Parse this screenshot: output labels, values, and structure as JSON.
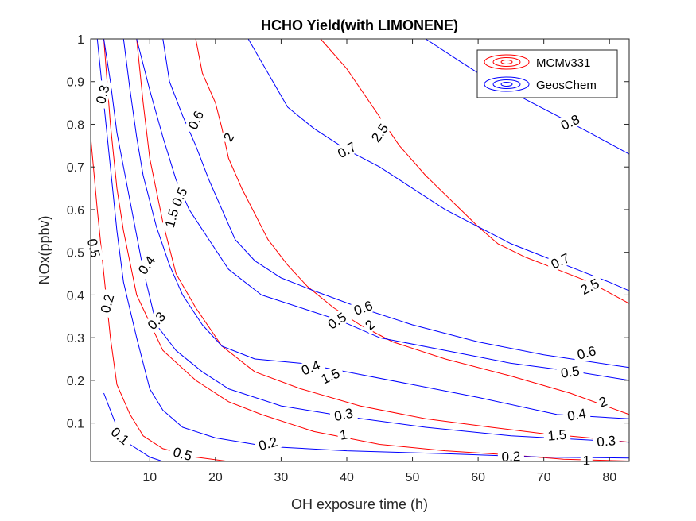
{
  "chart_data": {
    "type": "contour",
    "title": "HCHO Yield(with LIMONENE)",
    "xlabel": "OH exposure time (h)",
    "ylabel": "NOx(ppbv)",
    "xlim": [
      1,
      83
    ],
    "ylim": [
      0.01,
      1
    ],
    "xticks": [
      10,
      20,
      30,
      40,
      50,
      60,
      70,
      80
    ],
    "yticks": [
      0.1,
      0.2,
      0.3,
      0.4,
      0.5,
      0.6,
      0.7,
      0.8,
      0.9,
      1
    ],
    "ytick_labels": [
      "0.1",
      "0.2",
      "0.3",
      "0.4",
      "0.5",
      "0.6",
      "0.7",
      "0.8",
      "0.9",
      "1"
    ],
    "grid": false,
    "legend_position": "top-right",
    "colors": {
      "MCMv331": "#ff0000",
      "GeosChem": "#0000ff",
      "axes": "#262626"
    },
    "series": [
      {
        "name": "MCMv331",
        "contours": [
          {
            "level": "0.5",
            "points": [
              [
                1,
                0.77
              ],
              [
                2,
                0.6
              ],
              [
                3,
                0.45
              ],
              [
                4,
                0.3
              ],
              [
                5,
                0.19
              ],
              [
                7,
                0.12
              ],
              [
                9,
                0.07
              ],
              [
                12,
                0.04
              ],
              [
                17,
                0.02
              ],
              [
                22,
                0.01
              ]
            ],
            "labels": [
              {
                "x": 1.5,
                "y": 0.51,
                "angle": 78
              },
              {
                "x": 15,
                "y": 0.028,
                "angle": 15
              }
            ]
          },
          {
            "level": "1",
            "points": [
              [
                3,
                1
              ],
              [
                4,
                0.8
              ],
              [
                5,
                0.65
              ],
              [
                6,
                0.55
              ],
              [
                8,
                0.4
              ],
              [
                12,
                0.27
              ],
              [
                17,
                0.2
              ],
              [
                22,
                0.15
              ],
              [
                27,
                0.12
              ],
              [
                35,
                0.08
              ],
              [
                45,
                0.05
              ],
              [
                55,
                0.035
              ],
              [
                65,
                0.025
              ],
              [
                73,
                0.015
              ],
              [
                83,
                0.011
              ]
            ],
            "labels": [
              {
                "x": 39.5,
                "y": 0.073,
                "angle": -10
              },
              {
                "x": 76.5,
                "y": 0.013,
                "angle": 0
              }
            ]
          },
          {
            "level": "1.5",
            "points": [
              [
                8,
                1
              ],
              [
                9,
                0.85
              ],
              [
                10,
                0.72
              ],
              [
                12,
                0.57
              ],
              [
                14,
                0.45
              ],
              [
                17,
                0.37
              ],
              [
                21,
                0.28
              ],
              [
                26,
                0.22
              ],
              [
                33,
                0.18
              ],
              [
                42,
                0.14
              ],
              [
                52,
                0.11
              ],
              [
                62,
                0.09
              ],
              [
                70,
                0.075
              ],
              [
                77,
                0.065
              ],
              [
                83,
                0.055
              ]
            ],
            "labels": [
              {
                "x": 13.3,
                "y": 0.58,
                "angle": -75
              },
              {
                "x": 37.5,
                "y": 0.21,
                "angle": -25
              },
              {
                "x": 72,
                "y": 0.072,
                "angle": -5
              }
            ]
          },
          {
            "level": "2",
            "points": [
              [
                17,
                1
              ],
              [
                18,
                0.92
              ],
              [
                20,
                0.85
              ],
              [
                21,
                0.79
              ],
              [
                22,
                0.72
              ],
              [
                24,
                0.65
              ],
              [
                26,
                0.59
              ],
              [
                28,
                0.53
              ],
              [
                31,
                0.47
              ],
              [
                34,
                0.42
              ],
              [
                38,
                0.37
              ],
              [
                42,
                0.33
              ],
              [
                47,
                0.29
              ],
              [
                55,
                0.25
              ],
              [
                65,
                0.21
              ],
              [
                74,
                0.17
              ],
              [
                83,
                0.12
              ]
            ],
            "labels": [
              {
                "x": 22,
                "y": 0.77,
                "angle": -60
              },
              {
                "x": 43.5,
                "y": 0.33,
                "angle": -40
              },
              {
                "x": 79,
                "y": 0.15,
                "angle": -20
              }
            ]
          },
          {
            "level": "2.5",
            "points": [
              [
                36,
                1
              ],
              [
                40,
                0.93
              ],
              [
                44,
                0.84
              ],
              [
                48,
                0.75
              ],
              [
                52,
                0.68
              ],
              [
                56,
                0.62
              ],
              [
                60,
                0.56
              ],
              [
                63,
                0.52
              ],
              [
                67,
                0.49
              ],
              [
                72,
                0.46
              ],
              [
                77,
                0.43
              ],
              [
                83,
                0.38
              ]
            ],
            "labels": [
              {
                "x": 45,
                "y": 0.78,
                "angle": -55
              },
              {
                "x": 77,
                "y": 0.42,
                "angle": -28
              }
            ]
          }
        ]
      },
      {
        "name": "GeosChem",
        "contours": [
          {
            "level": "0.1",
            "points": [
              [
                3,
                0.17
              ],
              [
                5,
                0.09
              ],
              [
                7,
                0.05
              ],
              [
                10,
                0.02
              ],
              [
                12,
                0.01
              ]
            ],
            "labels": [
              {
                "x": 5.5,
                "y": 0.07,
                "angle": 40
              }
            ]
          },
          {
            "level": "0.2",
            "points": [
              [
                2,
                1
              ],
              [
                3,
                0.85
              ],
              [
                4,
                0.7
              ],
              [
                5,
                0.55
              ],
              [
                6,
                0.43
              ],
              [
                8,
                0.3
              ],
              [
                10,
                0.18
              ],
              [
                12,
                0.13
              ],
              [
                15,
                0.09
              ],
              [
                20,
                0.065
              ],
              [
                28,
                0.045
              ],
              [
                40,
                0.035
              ],
              [
                55,
                0.028
              ],
              [
                70,
                0.02
              ],
              [
                83,
                0.018
              ]
            ],
            "labels": [
              {
                "x": 3.5,
                "y": 0.38,
                "angle": -75
              },
              {
                "x": 28,
                "y": 0.052,
                "angle": -15
              },
              {
                "x": 65,
                "y": 0.022,
                "angle": -2
              }
            ]
          },
          {
            "level": "0.3",
            "points": [
              [
                3,
                1
              ],
              [
                4,
                0.9
              ],
              [
                5,
                0.78
              ],
              [
                7,
                0.62
              ],
              [
                9,
                0.46
              ],
              [
                11,
                0.33
              ],
              [
                14,
                0.27
              ],
              [
                18,
                0.22
              ],
              [
                22,
                0.18
              ],
              [
                30,
                0.14
              ],
              [
                40,
                0.115
              ],
              [
                52,
                0.09
              ],
              [
                65,
                0.07
              ],
              [
                83,
                0.055
              ]
            ],
            "labels": [
              {
                "x": 2.8,
                "y": 0.87,
                "angle": -75
              },
              {
                "x": 11,
                "y": 0.34,
                "angle": -45
              },
              {
                "x": 39.5,
                "y": 0.12,
                "angle": -12
              },
              {
                "x": 79.5,
                "y": 0.058,
                "angle": -5
              }
            ]
          },
          {
            "level": "0.4",
            "points": [
              [
                6,
                1
              ],
              [
                7,
                0.88
              ],
              [
                8,
                0.77
              ],
              [
                9,
                0.68
              ],
              [
                11,
                0.56
              ],
              [
                13,
                0.47
              ],
              [
                15,
                0.4
              ],
              [
                18,
                0.33
              ],
              [
                21,
                0.28
              ],
              [
                26,
                0.25
              ],
              [
                33,
                0.24
              ],
              [
                40,
                0.22
              ],
              [
                50,
                0.19
              ],
              [
                60,
                0.16
              ],
              [
                72,
                0.12
              ],
              [
                83,
                0.11
              ]
            ],
            "labels": [
              {
                "x": 9.5,
                "y": 0.47,
                "angle": -55
              },
              {
                "x": 34.5,
                "y": 0.23,
                "angle": -22
              },
              {
                "x": 75,
                "y": 0.12,
                "angle": -10
              }
            ]
          },
          {
            "level": "0.5",
            "points": [
              [
                8,
                1
              ],
              [
                10,
                0.88
              ],
              [
                12,
                0.77
              ],
              [
                14,
                0.67
              ],
              [
                16,
                0.6
              ],
              [
                19,
                0.53
              ],
              [
                22,
                0.46
              ],
              [
                27,
                0.4
              ],
              [
                33,
                0.37
              ],
              [
                39,
                0.34
              ],
              [
                45,
                0.3
              ],
              [
                55,
                0.27
              ],
              [
                65,
                0.24
              ],
              [
                75,
                0.22
              ],
              [
                83,
                0.2
              ]
            ],
            "labels": [
              {
                "x": 14.5,
                "y": 0.63,
                "angle": -65
              },
              {
                "x": 38.5,
                "y": 0.34,
                "angle": -33
              },
              {
                "x": 74,
                "y": 0.22,
                "angle": -8
              }
            ]
          },
          {
            "level": "0.6",
            "points": [
              [
                12,
                1
              ],
              [
                13,
                0.9
              ],
              [
                15,
                0.82
              ],
              [
                17,
                0.75
              ],
              [
                19,
                0.67
              ],
              [
                21,
                0.6
              ],
              [
                23,
                0.53
              ],
              [
                26,
                0.48
              ],
              [
                30,
                0.44
              ],
              [
                35,
                0.41
              ],
              [
                42,
                0.37
              ],
              [
                50,
                0.33
              ],
              [
                60,
                0.29
              ],
              [
                70,
                0.26
              ],
              [
                83,
                0.23
              ]
            ],
            "labels": [
              {
                "x": 17,
                "y": 0.81,
                "angle": -65
              },
              {
                "x": 42.5,
                "y": 0.37,
                "angle": -20
              },
              {
                "x": 76.5,
                "y": 0.265,
                "angle": -15
              }
            ]
          },
          {
            "level": "0.7",
            "points": [
              [
                25,
                1
              ],
              [
                28,
                0.92
              ],
              [
                31,
                0.84
              ],
              [
                35,
                0.79
              ],
              [
                40,
                0.74
              ],
              [
                45,
                0.7
              ],
              [
                50,
                0.65
              ],
              [
                55,
                0.6
              ],
              [
                60,
                0.56
              ],
              [
                65,
                0.52
              ],
              [
                70,
                0.49
              ],
              [
                75,
                0.46
              ],
              [
                80,
                0.43
              ],
              [
                83,
                0.41
              ]
            ],
            "labels": [
              {
                "x": 40,
                "y": 0.74,
                "angle": -30
              },
              {
                "x": 72.5,
                "y": 0.48,
                "angle": -25
              }
            ]
          },
          {
            "level": "0.8",
            "points": [
              [
                52,
                1
              ],
              [
                57,
                0.95
              ],
              [
                62,
                0.9
              ],
              [
                67,
                0.86
              ],
              [
                72,
                0.82
              ],
              [
                77,
                0.78
              ],
              [
                83,
                0.73
              ]
            ],
            "labels": [
              {
                "x": 74,
                "y": 0.805,
                "angle": -25
              }
            ]
          }
        ]
      }
    ]
  }
}
